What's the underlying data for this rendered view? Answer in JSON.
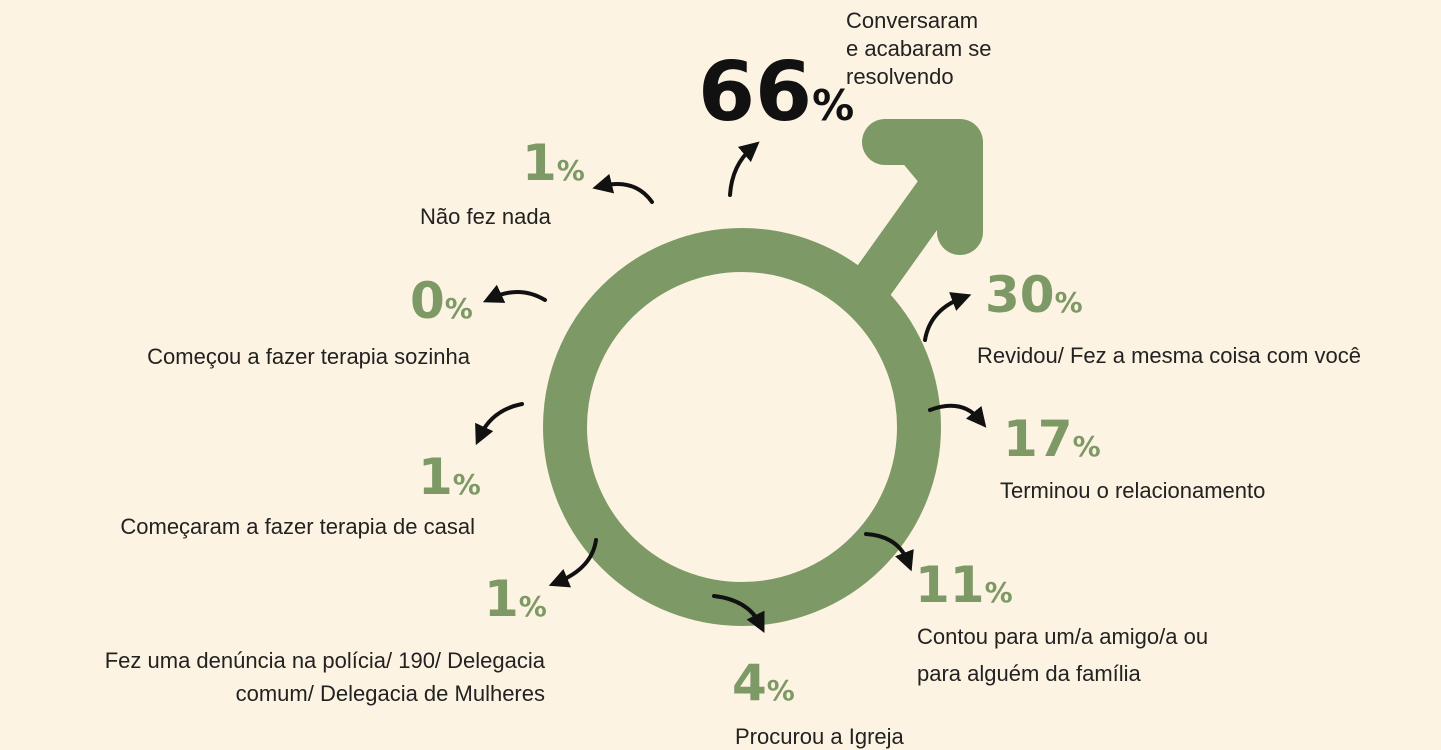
{
  "items": [
    {
      "value": 66,
      "unit": "%",
      "label": [
        "Conversaram",
        "e acabaram se",
        "resolvendo"
      ]
    },
    {
      "value": 1,
      "unit": "%",
      "label": [
        "Não fez nada"
      ]
    },
    {
      "value": 0,
      "unit": "%",
      "label": [
        "Começou a fazer terapia sozinha"
      ]
    },
    {
      "value": 1,
      "unit": "%",
      "label": [
        "Começaram a fazer terapia de casal"
      ]
    },
    {
      "value": 1,
      "unit": "%",
      "label": [
        "Fez uma denúncia na polícia/ 190/ Delegacia",
        "comum/ Delegacia de Mulheres"
      ]
    },
    {
      "value": 4,
      "unit": "%",
      "label": [
        "Procurou a Igreja"
      ]
    },
    {
      "value": 11,
      "unit": "%",
      "label": [
        "Contou para um/a amigo/a ou",
        "para alguém da família"
      ]
    },
    {
      "value": 17,
      "unit": "%",
      "label": [
        "Terminou o relacionamento"
      ]
    },
    {
      "value": 30,
      "unit": "%",
      "label": [
        "Revidou/ Fez a mesma coisa com você"
      ]
    }
  ]
}
